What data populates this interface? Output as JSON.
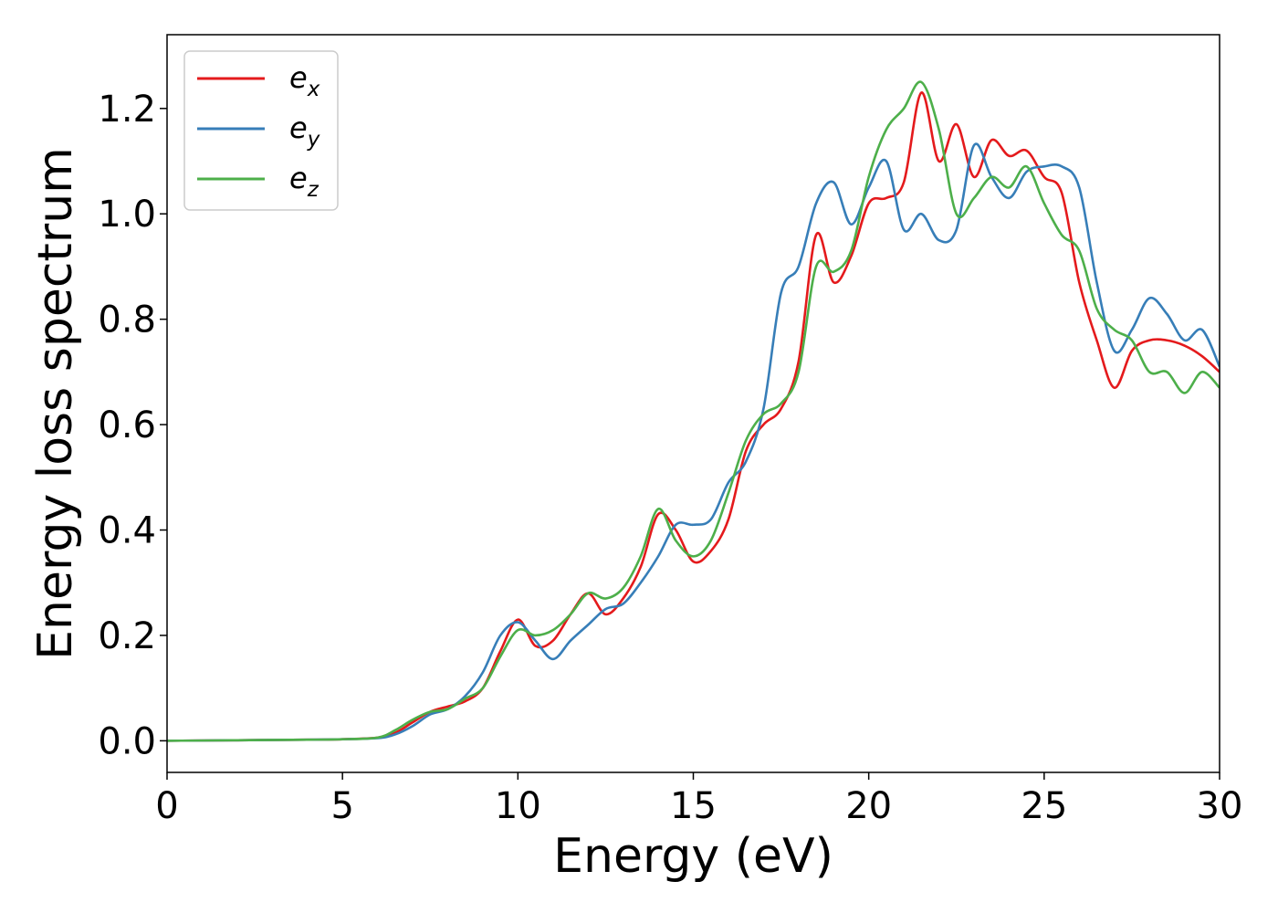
{
  "chart_data": {
    "type": "line",
    "xlabel": "Energy (eV)",
    "ylabel": "Energy loss spectrum",
    "xlim": [
      0,
      30
    ],
    "ylim": [
      -0.06,
      1.34
    ],
    "xticks": [
      0,
      5,
      10,
      15,
      20,
      25,
      30
    ],
    "xtick_labels": [
      "0",
      "5",
      "10",
      "15",
      "20",
      "25",
      "30"
    ],
    "yticks": [
      0.0,
      0.2,
      0.4,
      0.6,
      0.8,
      1.0,
      1.2
    ],
    "ytick_labels": [
      "0.0",
      "0.2",
      "0.4",
      "0.6",
      "0.8",
      "1.0",
      "1.2"
    ],
    "grid": false,
    "legend_position": "top-left",
    "series": [
      {
        "name": "e",
        "subscript": "x",
        "color": "#e41a1c",
        "x": [
          0,
          2,
          4,
          5,
          6,
          6.5,
          7,
          7.5,
          8,
          8.5,
          9,
          9.5,
          10,
          10.5,
          11,
          11.5,
          12,
          12.5,
          13,
          13.5,
          14,
          14.5,
          15,
          15.5,
          16,
          16.5,
          17,
          17.5,
          18,
          18.5,
          19,
          19.5,
          20,
          20.5,
          21,
          21.5,
          22,
          22.5,
          23,
          23.5,
          24,
          24.5,
          25,
          25.5,
          26,
          26.5,
          27,
          27.5,
          28,
          28.5,
          29,
          29.5,
          30
        ],
        "y": [
          0.0,
          0.001,
          0.002,
          0.003,
          0.006,
          0.015,
          0.035,
          0.055,
          0.065,
          0.075,
          0.1,
          0.17,
          0.23,
          0.18,
          0.19,
          0.24,
          0.28,
          0.24,
          0.27,
          0.33,
          0.43,
          0.4,
          0.34,
          0.36,
          0.42,
          0.55,
          0.6,
          0.63,
          0.72,
          0.96,
          0.87,
          0.92,
          1.02,
          1.03,
          1.06,
          1.23,
          1.1,
          1.17,
          1.07,
          1.14,
          1.11,
          1.12,
          1.07,
          1.04,
          0.87,
          0.76,
          0.67,
          0.74,
          0.76,
          0.76,
          0.75,
          0.73,
          0.7
        ]
      },
      {
        "name": "e",
        "subscript": "y",
        "color": "#377eb8",
        "x": [
          0,
          2,
          4,
          5,
          6,
          6.5,
          7,
          7.5,
          8,
          8.5,
          9,
          9.5,
          10,
          10.5,
          11,
          11.5,
          12,
          12.5,
          13,
          13.5,
          14,
          14.5,
          15,
          15.5,
          16,
          16.5,
          17,
          17.5,
          18,
          18.5,
          19,
          19.5,
          20,
          20.5,
          21,
          21.5,
          22,
          22.5,
          23,
          23.5,
          24,
          24.5,
          25,
          25.5,
          26,
          26.5,
          27,
          27.5,
          28,
          28.5,
          29,
          29.5,
          30
        ],
        "y": [
          0.0,
          0.001,
          0.002,
          0.003,
          0.005,
          0.012,
          0.028,
          0.05,
          0.06,
          0.085,
          0.13,
          0.2,
          0.225,
          0.19,
          0.155,
          0.19,
          0.22,
          0.25,
          0.26,
          0.3,
          0.35,
          0.41,
          0.41,
          0.42,
          0.49,
          0.53,
          0.63,
          0.85,
          0.9,
          1.02,
          1.06,
          0.98,
          1.05,
          1.1,
          0.97,
          1.0,
          0.95,
          0.97,
          1.13,
          1.07,
          1.03,
          1.08,
          1.09,
          1.09,
          1.05,
          0.87,
          0.74,
          0.78,
          0.84,
          0.81,
          0.76,
          0.78,
          0.71
        ]
      },
      {
        "name": "e",
        "subscript": "z",
        "color": "#4daf4a",
        "x": [
          0,
          2,
          4,
          5,
          6,
          6.5,
          7,
          7.5,
          8,
          8.5,
          9,
          9.5,
          10,
          10.5,
          11,
          11.5,
          12,
          12.5,
          13,
          13.5,
          14,
          14.5,
          15,
          15.5,
          16,
          16.5,
          17,
          17.5,
          18,
          18.5,
          19,
          19.5,
          20,
          20.5,
          21,
          21.5,
          22,
          22.5,
          23,
          23.5,
          24,
          24.5,
          25,
          25.5,
          26,
          26.5,
          27,
          27.5,
          28,
          28.5,
          29,
          29.5,
          30
        ],
        "y": [
          0.0,
          0.001,
          0.002,
          0.003,
          0.006,
          0.02,
          0.04,
          0.055,
          0.06,
          0.08,
          0.1,
          0.16,
          0.21,
          0.2,
          0.21,
          0.24,
          0.28,
          0.27,
          0.29,
          0.35,
          0.44,
          0.38,
          0.35,
          0.38,
          0.47,
          0.57,
          0.62,
          0.64,
          0.7,
          0.9,
          0.89,
          0.93,
          1.07,
          1.16,
          1.2,
          1.25,
          1.16,
          1.0,
          1.03,
          1.07,
          1.05,
          1.09,
          1.02,
          0.96,
          0.93,
          0.82,
          0.78,
          0.76,
          0.7,
          0.7,
          0.66,
          0.7,
          0.67
        ]
      }
    ]
  }
}
